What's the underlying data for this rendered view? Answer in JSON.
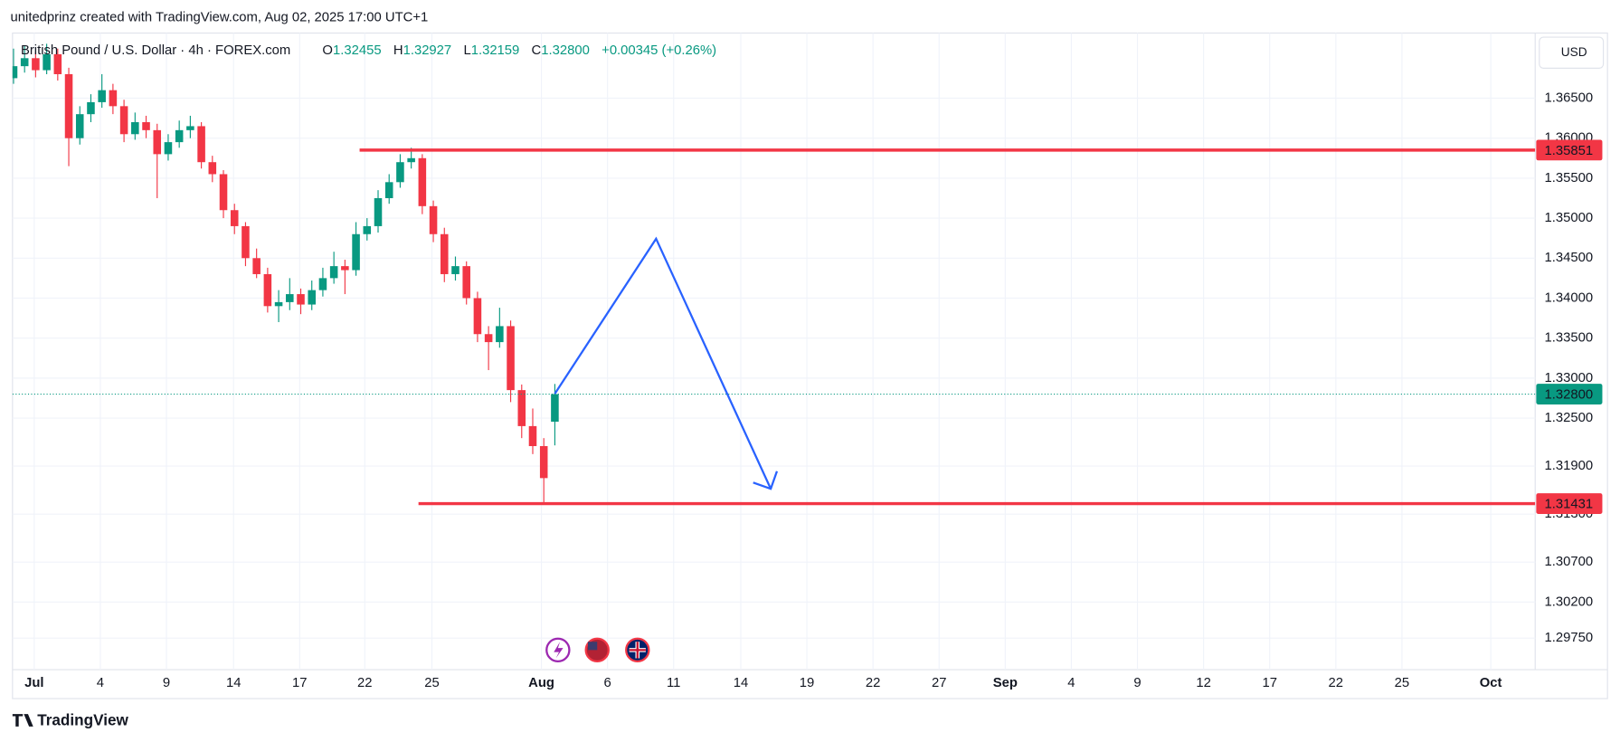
{
  "header": {
    "credit": "unitedprinz created with TradingView.com, Aug 02, 2025 17:00 UTC+1",
    "symbol": "British Pound / U.S. Dollar · 4h · FOREX.com",
    "open_label": "O",
    "open": "1.32455",
    "high_label": "H",
    "high": "1.32927",
    "low_label": "L",
    "low": "1.32159",
    "close_label": "C",
    "close": "1.32800",
    "change": "+0.00345 (+0.26%)",
    "currency": "USD"
  },
  "footer": {
    "brand": "TradingView"
  },
  "chart_data": {
    "type": "candlestick",
    "up_color": "#089981",
    "down_color": "#f23645",
    "grid": true,
    "ylim": [
      1.29355,
      1.37314
    ],
    "yticks": [
      {
        "value": 1.2975,
        "label": "1.29750"
      },
      {
        "value": 1.302,
        "label": "1.30200"
      },
      {
        "value": 1.307,
        "label": "1.30700"
      },
      {
        "value": 1.313,
        "label": "1.31300"
      },
      {
        "value": 1.319,
        "label": "1.31900"
      },
      {
        "value": 1.325,
        "label": "1.32500"
      },
      {
        "value": 1.33,
        "label": "1.33000"
      },
      {
        "value": 1.335,
        "label": "1.33500"
      },
      {
        "value": 1.34,
        "label": "1.34000"
      },
      {
        "value": 1.345,
        "label": "1.34500"
      },
      {
        "value": 1.35,
        "label": "1.35000"
      },
      {
        "value": 1.355,
        "label": "1.35500"
      },
      {
        "value": 1.36,
        "label": "1.36000"
      },
      {
        "value": 1.365,
        "label": "1.36500"
      }
    ],
    "x_labels": [
      "Jul",
      "4",
      "9",
      "14",
      "17",
      "22",
      "25",
      "Aug",
      "6",
      "11",
      "14",
      "19",
      "22",
      "27",
      "Sep",
      "4",
      "9",
      "12",
      "17",
      "22",
      "25",
      "Oct"
    ],
    "candles": [
      [
        1.3675,
        1.3712,
        1.3668,
        1.369
      ],
      [
        1.369,
        1.3715,
        1.3682,
        1.37
      ],
      [
        1.37,
        1.3708,
        1.3676,
        1.3685
      ],
      [
        1.3685,
        1.3718,
        1.368,
        1.3705
      ],
      [
        1.3705,
        1.3712,
        1.3672,
        1.368
      ],
      [
        1.368,
        1.3688,
        1.3565,
        1.36
      ],
      [
        1.36,
        1.364,
        1.3592,
        1.363
      ],
      [
        1.363,
        1.3655,
        1.362,
        1.3645
      ],
      [
        1.3645,
        1.368,
        1.3638,
        1.366
      ],
      [
        1.366,
        1.3668,
        1.363,
        1.364
      ],
      [
        1.364,
        1.3648,
        1.3595,
        1.3605
      ],
      [
        1.3605,
        1.3632,
        1.3598,
        1.362
      ],
      [
        1.362,
        1.3628,
        1.36,
        1.361
      ],
      [
        1.361,
        1.3618,
        1.3525,
        1.358
      ],
      [
        1.358,
        1.3605,
        1.3572,
        1.3595
      ],
      [
        1.3595,
        1.3622,
        1.3588,
        1.361
      ],
      [
        1.361,
        1.3628,
        1.36,
        1.3615
      ],
      [
        1.3615,
        1.362,
        1.3562,
        1.357
      ],
      [
        1.357,
        1.3578,
        1.3545,
        1.3555
      ],
      [
        1.3555,
        1.356,
        1.35,
        1.351
      ],
      [
        1.351,
        1.3518,
        1.348,
        1.349
      ],
      [
        1.349,
        1.3495,
        1.344,
        1.345
      ],
      [
        1.345,
        1.3462,
        1.3425,
        1.343
      ],
      [
        1.343,
        1.3438,
        1.3382,
        1.339
      ],
      [
        1.339,
        1.341,
        1.337,
        1.3395
      ],
      [
        1.3395,
        1.3425,
        1.3385,
        1.3405
      ],
      [
        1.3405,
        1.3412,
        1.338,
        1.3392
      ],
      [
        1.3392,
        1.3422,
        1.3385,
        1.341
      ],
      [
        1.341,
        1.3438,
        1.3402,
        1.3425
      ],
      [
        1.3425,
        1.3458,
        1.3418,
        1.344
      ],
      [
        1.344,
        1.3448,
        1.3405,
        1.3435
      ],
      [
        1.3435,
        1.3495,
        1.3428,
        1.348
      ],
      [
        1.348,
        1.35,
        1.3472,
        1.349
      ],
      [
        1.349,
        1.3535,
        1.3482,
        1.3525
      ],
      [
        1.3525,
        1.3555,
        1.3518,
        1.3545
      ],
      [
        1.3545,
        1.358,
        1.3538,
        1.357
      ],
      [
        1.357,
        1.3588,
        1.3562,
        1.3575
      ],
      [
        1.3575,
        1.358,
        1.3505,
        1.3515
      ],
      [
        1.3515,
        1.3522,
        1.347,
        1.348
      ],
      [
        1.348,
        1.3488,
        1.342,
        1.343
      ],
      [
        1.343,
        1.3452,
        1.3422,
        1.344
      ],
      [
        1.344,
        1.3446,
        1.3392,
        1.34
      ],
      [
        1.34,
        1.3408,
        1.3345,
        1.3355
      ],
      [
        1.3355,
        1.3365,
        1.331,
        1.3345
      ],
      [
        1.3345,
        1.3388,
        1.3338,
        1.3365
      ],
      [
        1.3365,
        1.3372,
        1.327,
        1.3285
      ],
      [
        1.3285,
        1.3292,
        1.3225,
        1.324
      ],
      [
        1.324,
        1.3262,
        1.3205,
        1.3215
      ],
      [
        1.3215,
        1.3225,
        1.3143,
        1.3175
      ],
      [
        1.32455,
        1.32927,
        1.32159,
        1.328
      ]
    ],
    "levels": [
      {
        "value": 1.35851,
        "label": "1.35851",
        "color": "#f23645"
      },
      {
        "value": 1.31431,
        "label": "1.31431",
        "color": "#f23645"
      }
    ],
    "last_price": {
      "value": 1.328,
      "label": "1.32800",
      "color": "#089981"
    }
  }
}
